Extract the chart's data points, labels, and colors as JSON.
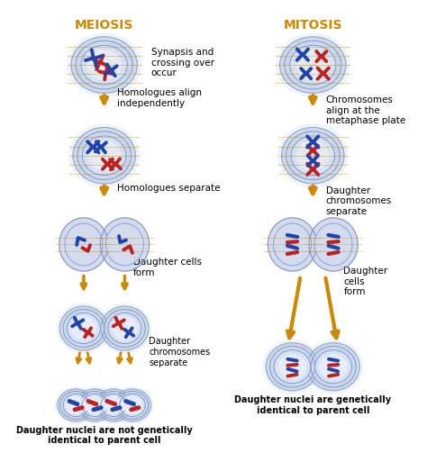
{
  "title_left": "MEIOSIS",
  "title_right": "MITOSIS",
  "title_color": "#CC8800",
  "bg": "#FFFFFF",
  "cell_outer": "#B8C8E0",
  "cell_mid": "#C8D8EE",
  "cell_inner": "#D8E4F8",
  "cell_core": "#E4ECF8",
  "spindle_color": "#CC8800",
  "chrom_blue": "#2244AA",
  "chrom_red": "#BB2222",
  "arrow_color": "#CC8800",
  "text_color": "#000000",
  "labels": {
    "m1_right": "Synapsis and\ncrossing over\noccur",
    "m2_label": "Homologues align\nindependently",
    "m3_label": "Homologues separate",
    "m4_label": "Daughter cells\nform",
    "m5_label": "Daughter\nchromosomes\nseparate",
    "m6_bottom": "Daughter nuclei are not genetically\nidentical to parent cell",
    "t1_right": "Chromosomes\nalign at the\nmetaphase plate",
    "t2_label": "Daughter\nchromosomes\nseparate",
    "t3_label": "Daughter\ncells\nform",
    "t4_bottom": "Daughter nuclei are genetically\nidentical to parent cell"
  }
}
